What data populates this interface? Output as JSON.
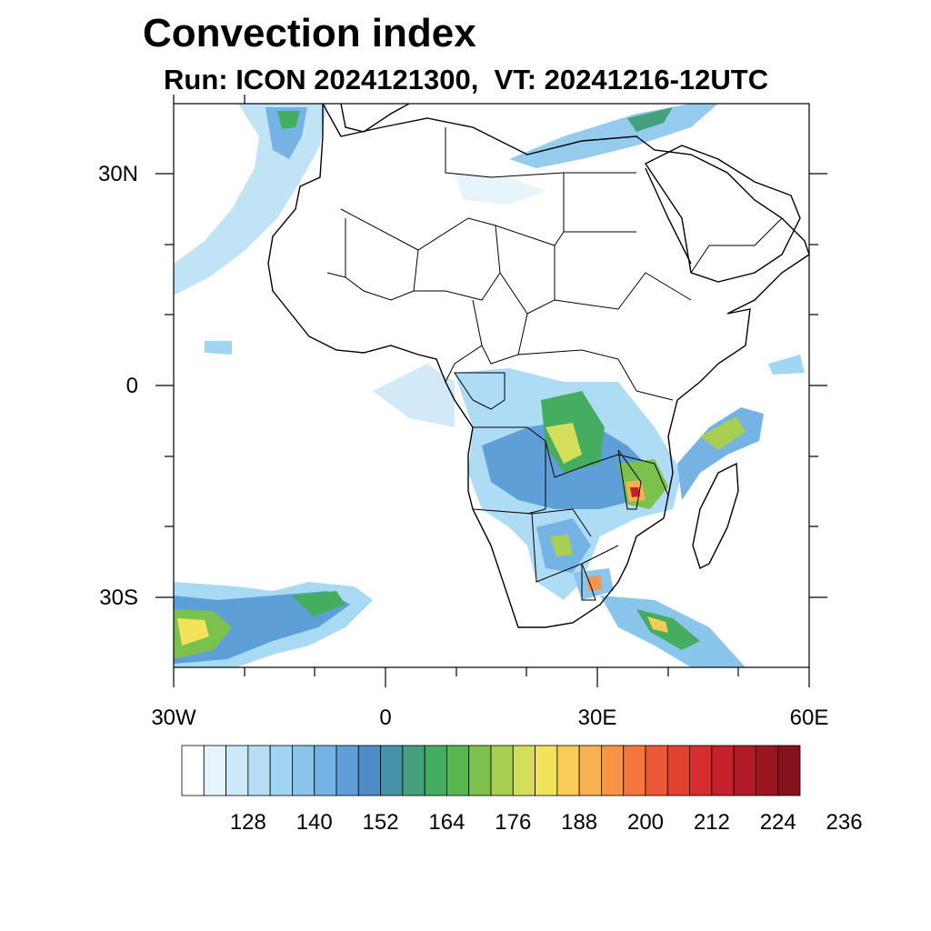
{
  "title": "Convection index",
  "subtitle": "Run: ICON 2024121300,  VT: 20241216-12UTC",
  "axes": {
    "lat_labels": [
      "30N",
      "0",
      "30S"
    ],
    "lon_labels": [
      "30W",
      "0",
      "30E",
      "60E"
    ]
  },
  "colorbar": {
    "tick_labels": [
      "128",
      "140",
      "152",
      "164",
      "176",
      "188",
      "200",
      "212",
      "224",
      "236"
    ],
    "colors": [
      "#ffffff",
      "#e8f4fb",
      "#cde8f6",
      "#b5def5",
      "#a0d6f3",
      "#8ac6ec",
      "#74b3e3",
      "#5e9fd7",
      "#4d8cc6",
      "#4592a8",
      "#45a07d",
      "#45ad60",
      "#55b84f",
      "#7cc14e",
      "#a8cf52",
      "#d5de5a",
      "#f3e35b",
      "#f8cc55",
      "#f8b14e",
      "#f79445",
      "#f3763d",
      "#eb5936",
      "#e24130",
      "#d62e2c",
      "#c4212a",
      "#b11b27",
      "#9a1621",
      "#85131b"
    ]
  }
}
